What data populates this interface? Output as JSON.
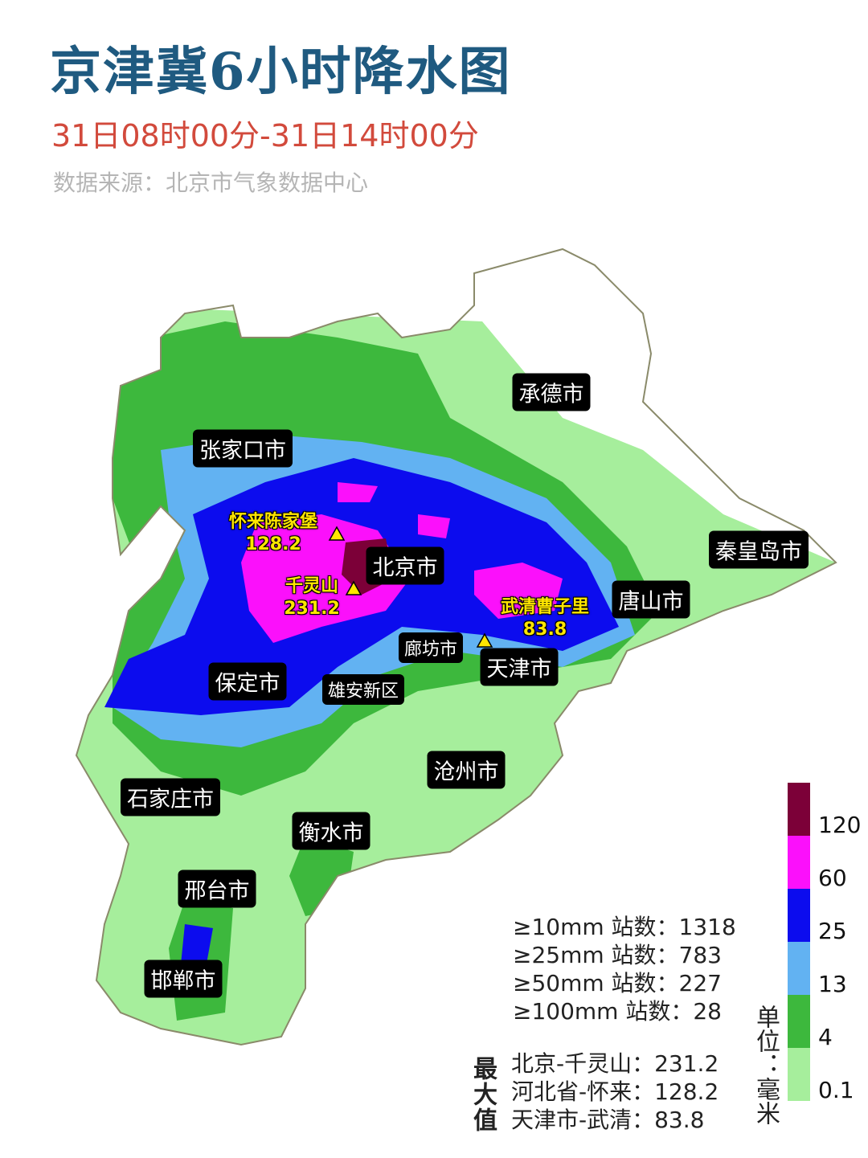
{
  "header": {
    "title": "京津冀6小时降水图",
    "subtitle": "31日08时00分-31日14时00分",
    "source": "数据来源：北京市气象数据中心"
  },
  "cities": [
    "承德市",
    "张家口市",
    "秦皇岛市",
    "北京市",
    "唐山市",
    "廊坊市",
    "天津市",
    "保定市",
    "雄安新区",
    "沧州市",
    "石家庄市",
    "衡水市",
    "邢台市",
    "邯郸市"
  ],
  "stations": [
    {
      "name": "怀来陈家堡",
      "value": 128.2
    },
    {
      "name": "千灵山",
      "value": 231.2
    },
    {
      "name": "武清曹子里",
      "value": 83.8
    }
  ],
  "legend": {
    "unit": "单位：毫米",
    "levels": [
      {
        "label": "0.1",
        "color": "#a6ee9c"
      },
      {
        "label": "4",
        "color": "#3db83d"
      },
      {
        "label": "13",
        "color": "#62b2f2"
      },
      {
        "label": "25",
        "color": "#0c0cee"
      },
      {
        "label": "60",
        "color": "#fb10fb"
      },
      {
        "label": "120",
        "color": "#7c0038"
      }
    ]
  },
  "counts": [
    {
      "label": "≥10mm 站数：",
      "value": 1318
    },
    {
      "label": "≥25mm 站数：",
      "value": 783
    },
    {
      "label": "≥50mm 站数：",
      "value": 227
    },
    {
      "label": "≥100mm 站数：",
      "value": 28
    }
  ],
  "maxima": {
    "title": "最大值",
    "items": [
      {
        "label": "北京-千灵山：",
        "value": 231.2
      },
      {
        "label": "河北省-怀来：",
        "value": 128.2
      },
      {
        "label": "天津市-武清：",
        "value": 83.8
      }
    ]
  }
}
